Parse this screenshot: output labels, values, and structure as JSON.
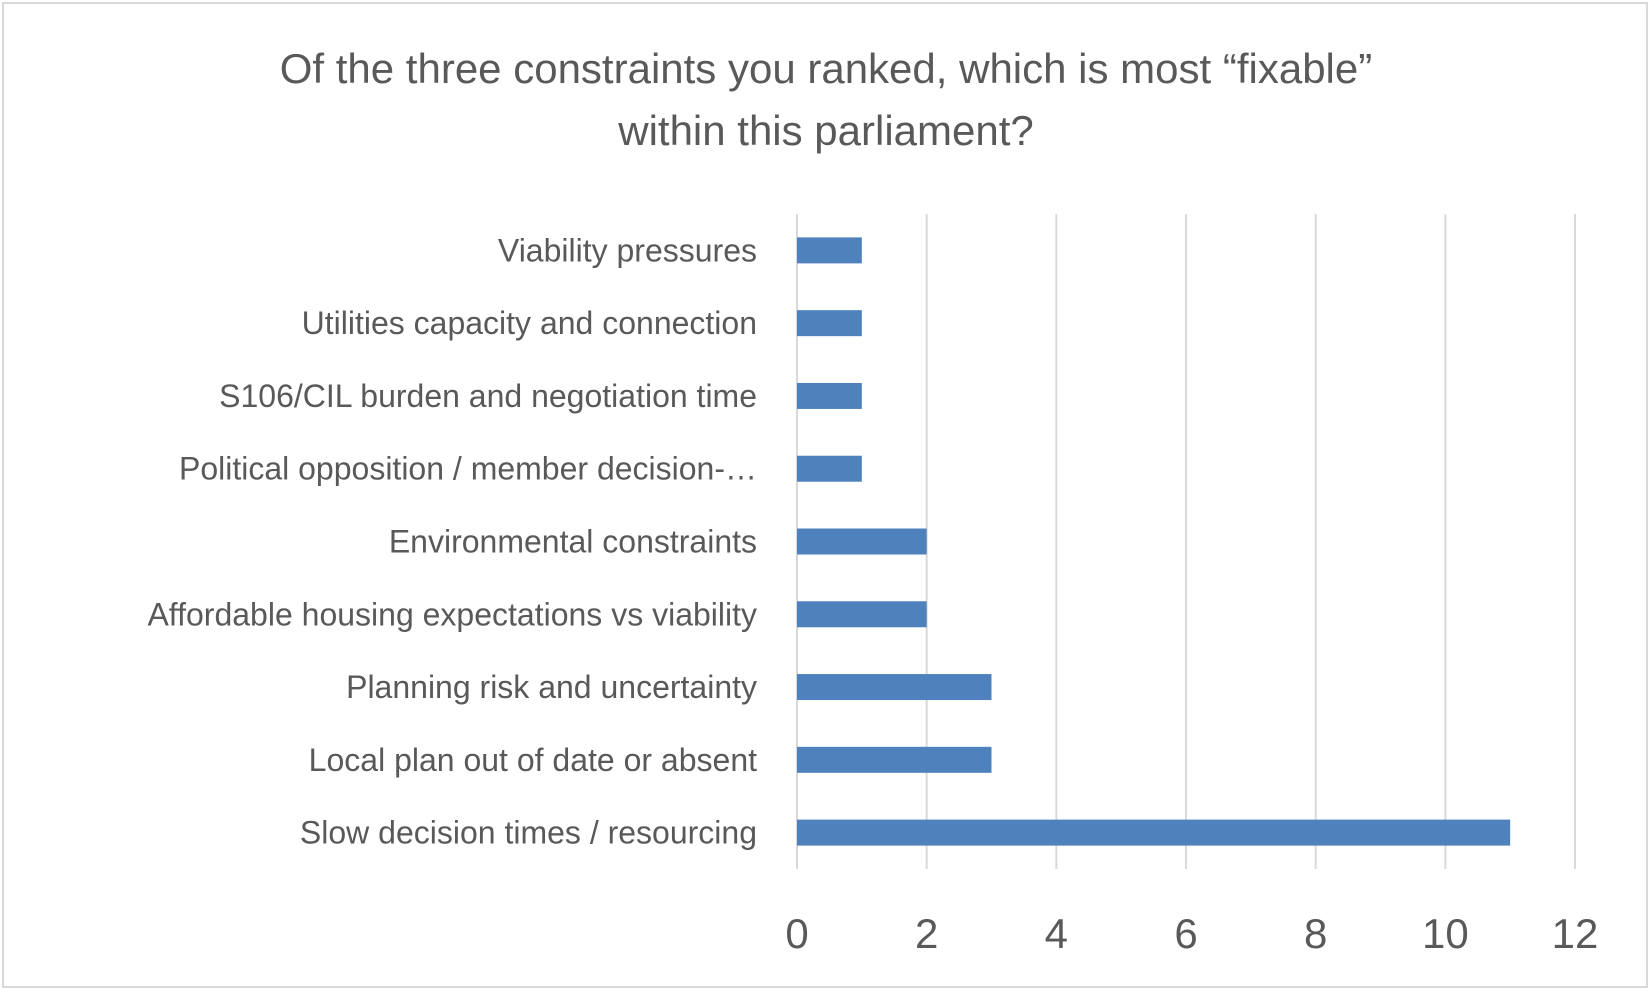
{
  "chart_data": {
    "type": "bar",
    "orientation": "horizontal",
    "title_lines": [
      "Of the three constraints you ranked, which is most “fixable”",
      "within this parliament?"
    ],
    "categories": [
      "Viability pressures",
      "Utilities capacity and connection",
      "S106/CIL burden and negotiation time",
      "Political opposition / member decision-…",
      "Environmental constraints",
      "Affordable housing expectations vs viability",
      "Planning risk and uncertainty",
      "Local plan out of date or absent",
      "Slow decision times / resourcing"
    ],
    "values": [
      1,
      1,
      1,
      1,
      2,
      2,
      3,
      3,
      11
    ],
    "xlim": [
      0,
      12
    ],
    "x_ticks": [
      "0",
      "2",
      "4",
      "6",
      "8",
      "10",
      "12"
    ],
    "grid": true,
    "legend": "none",
    "colors": {
      "bar": "#4f81bd",
      "grid": "#d9d9d9",
      "text": "#595959"
    }
  }
}
